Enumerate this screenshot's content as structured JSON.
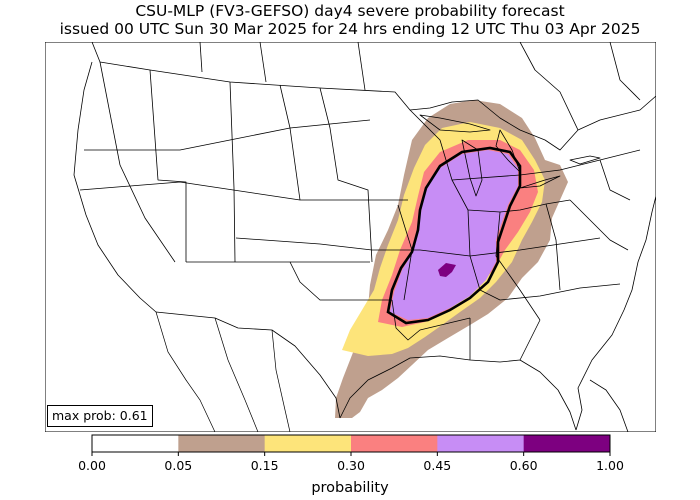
{
  "title_line1": "CSU-MLP (FV3-GEFSO) day4 severe probability forecast",
  "title_line2": "issued 00 UTC Sun 30 Mar 2025 for 24 hrs ending 12 UTC Thu 03 Apr 2025",
  "max_prob_label": "max prob: 0.61",
  "colorbar": {
    "label": "probability",
    "ticks": [
      "0.00",
      "0.05",
      "0.15",
      "0.30",
      "0.45",
      "0.60",
      "1.00"
    ],
    "colors": [
      "#ffffff",
      "#bfa08e",
      "#fde47a",
      "#fa8080",
      "#c78df5",
      "#7d0080"
    ]
  },
  "outline_colors": {
    "land_lines": "#000000",
    "contour": "#000000"
  }
}
